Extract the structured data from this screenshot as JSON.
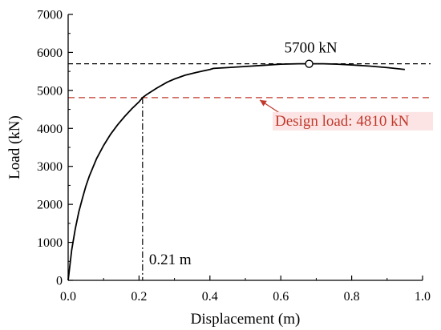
{
  "chart_data": {
    "type": "line",
    "xlabel": "Displacement (m)",
    "ylabel": "Load (kN)",
    "xlim": [
      0,
      1.0
    ],
    "ylim": [
      0,
      7000
    ],
    "x_ticks": [
      0.0,
      0.2,
      0.4,
      0.6,
      0.8,
      1.0
    ],
    "x_tick_labels": [
      "0.0",
      "0.2",
      "0.4",
      "0.6",
      "0.8",
      "1.0"
    ],
    "y_ticks": [
      0,
      1000,
      2000,
      3000,
      4000,
      5000,
      6000,
      7000
    ],
    "y_tick_labels": [
      "0",
      "1000",
      "2000",
      "3000",
      "4000",
      "5000",
      "6000",
      "7000"
    ],
    "grid": false,
    "series": [
      {
        "x": [
          0.0,
          0.005,
          0.01,
          0.02,
          0.03,
          0.04,
          0.05,
          0.06,
          0.08,
          0.1,
          0.12,
          0.14,
          0.16,
          0.18,
          0.2,
          0.21,
          0.22,
          0.25,
          0.28,
          0.3,
          0.33,
          0.36,
          0.38,
          0.4,
          0.41,
          0.45,
          0.5,
          0.55,
          0.6,
          0.65,
          0.68,
          0.72,
          0.76,
          0.8,
          0.85,
          0.9,
          0.95
        ],
        "y": [
          0,
          400,
          800,
          1350,
          1800,
          2150,
          2480,
          2750,
          3200,
          3550,
          3850,
          4100,
          4320,
          4520,
          4700,
          4810,
          4880,
          5060,
          5220,
          5300,
          5400,
          5470,
          5510,
          5550,
          5580,
          5600,
          5630,
          5660,
          5690,
          5700,
          5700,
          5700,
          5690,
          5670,
          5640,
          5600,
          5550
        ],
        "color": "#000000"
      }
    ],
    "reference_lines": {
      "peak_load": {
        "y": 5700,
        "color": "#000000",
        "style": "dashed"
      },
      "design_load": {
        "y": 4810,
        "color": "#c0392b",
        "style": "dashed"
      },
      "design_displacement": {
        "x": 0.21,
        "y_top": 4810,
        "color": "#000000",
        "style": "dash-dot"
      }
    },
    "peak_marker": {
      "x": 0.68,
      "y": 5700
    },
    "annotations": {
      "peak_label": "5700 kN",
      "design_label": "Design load: 4810 kN",
      "displacement_label": "0.21 m",
      "design_color": "#c0392b",
      "design_bg": "#fce4e4"
    }
  }
}
